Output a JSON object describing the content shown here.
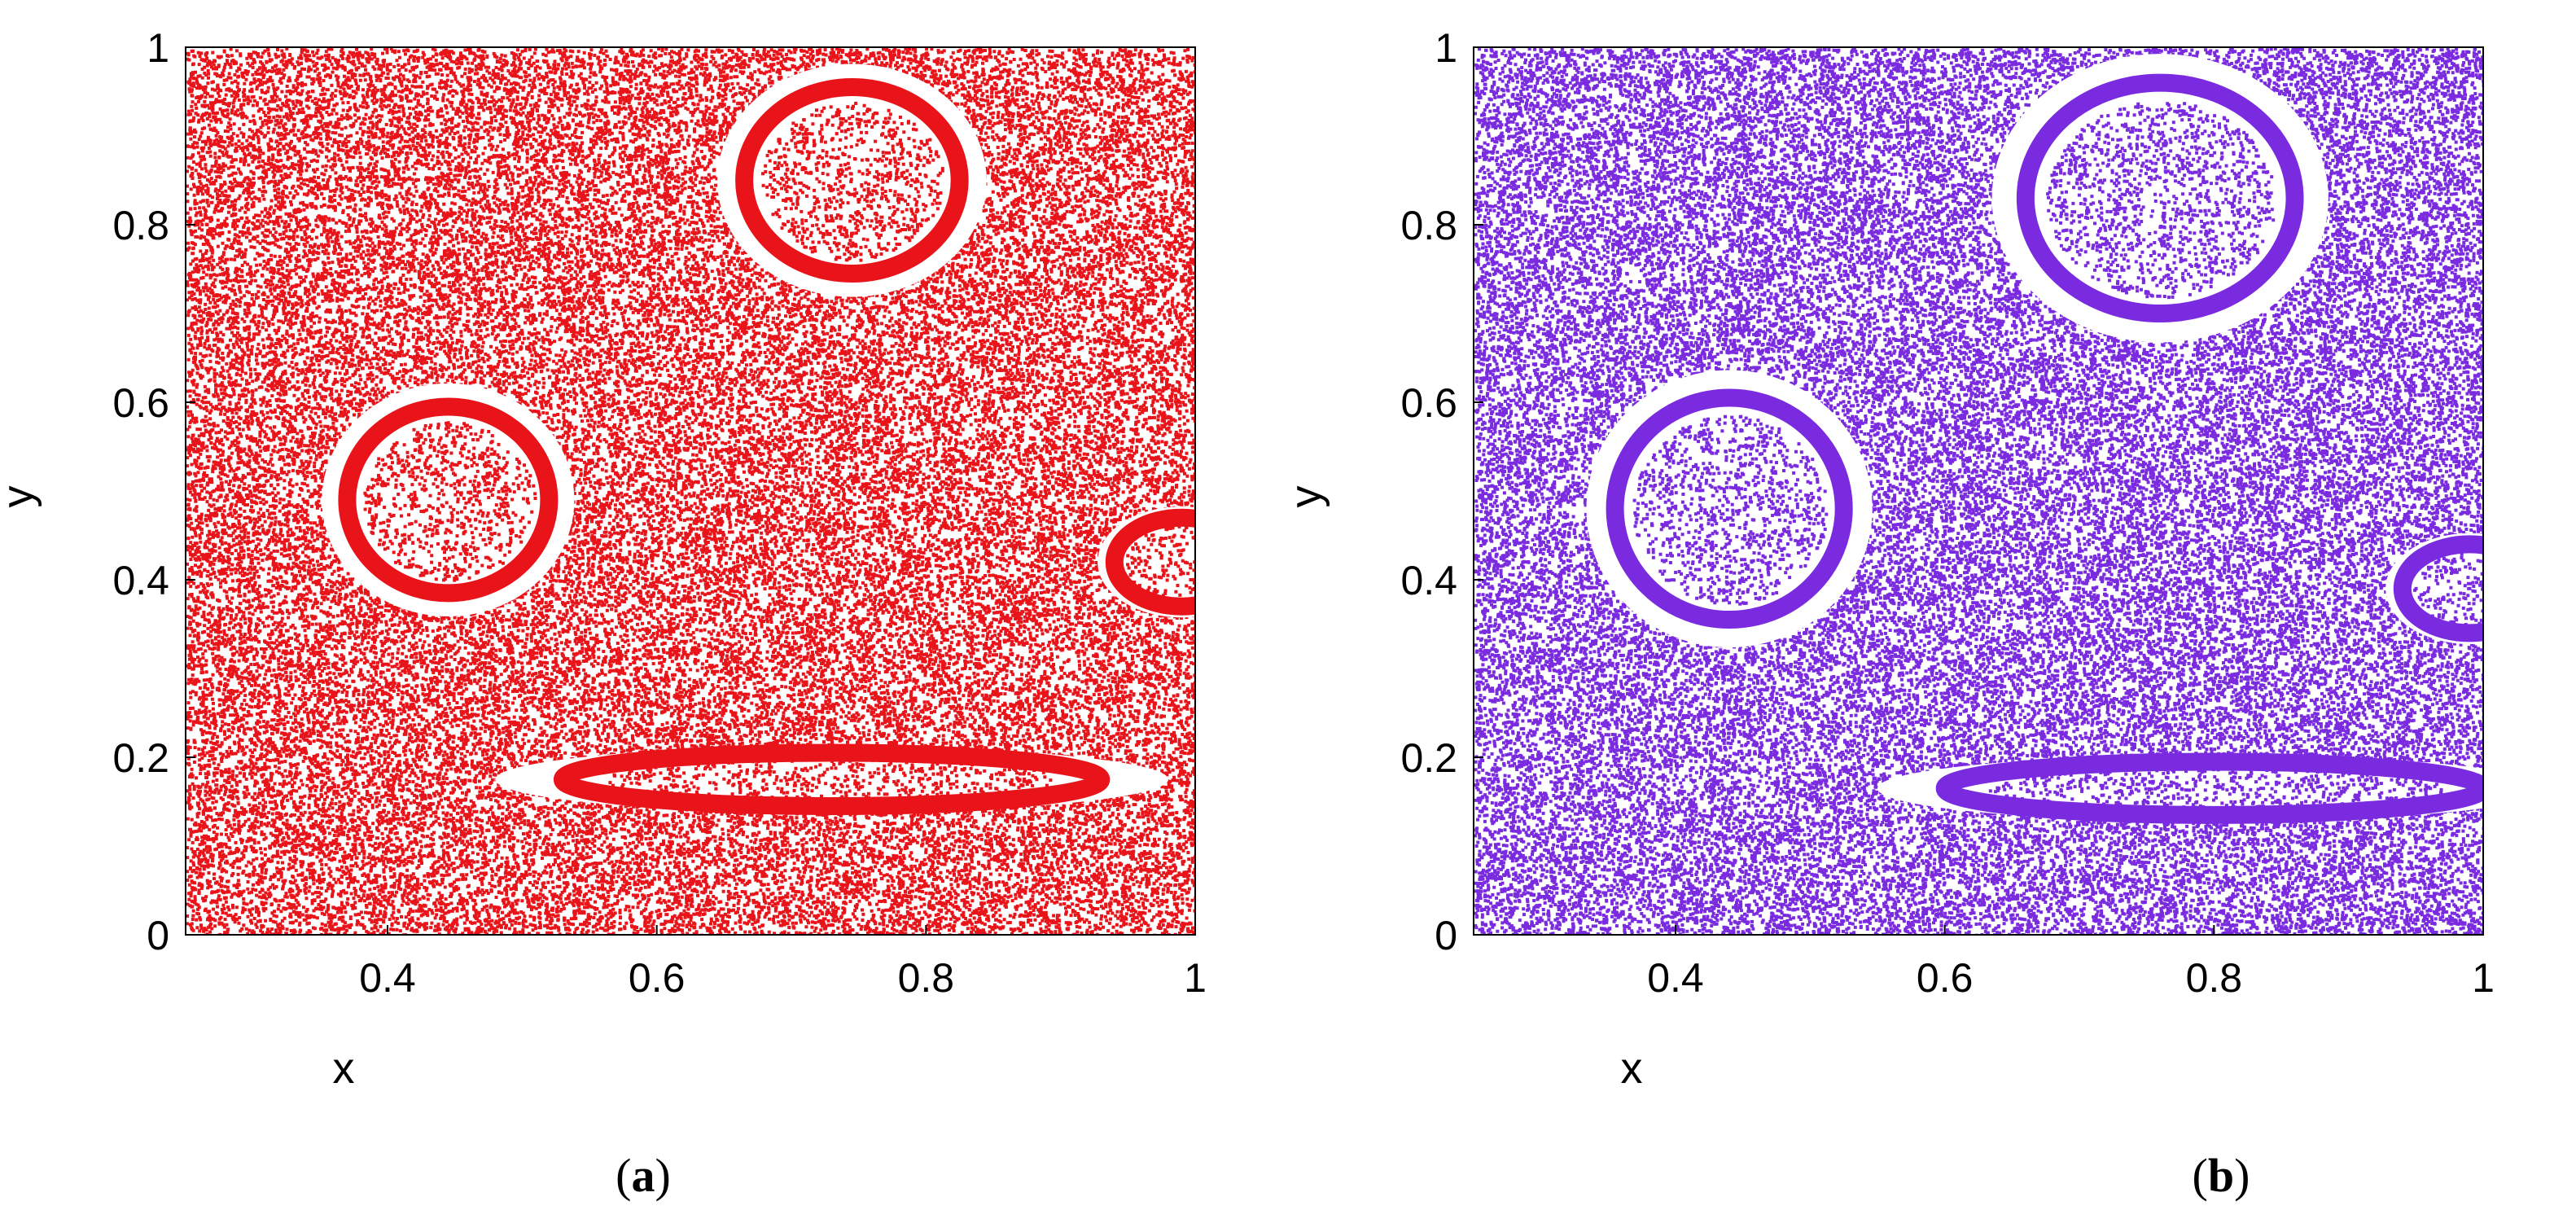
{
  "chart_data": [
    {
      "type": "scatter",
      "panel_label": "a",
      "xlabel": "x",
      "ylabel": "y",
      "xlim": [
        0.25,
        1.0
      ],
      "ylim": [
        0,
        1
      ],
      "xticks": [
        0.4,
        0.6,
        0.8,
        1.0
      ],
      "xtick_labels": [
        "0.4",
        "0.6",
        "0.8",
        "1"
      ],
      "yticks": [
        0,
        0.2,
        0.4,
        0.6,
        0.8,
        1.0
      ],
      "ytick_labels": [
        "0",
        "0.2",
        "0.4",
        "0.6",
        "0.8",
        "1"
      ],
      "color": "#e8141a",
      "islands": [
        {
          "cx": 0.445,
          "cy": 0.49,
          "rx": 0.075,
          "ry": 0.105
        },
        {
          "cx": 0.745,
          "cy": 0.85,
          "rx": 0.08,
          "ry": 0.105
        },
        {
          "cx": 0.73,
          "cy": 0.175,
          "rx": 0.2,
          "ry": 0.03
        },
        {
          "cx": 0.99,
          "cy": 0.42,
          "rx": 0.05,
          "ry": 0.05
        }
      ],
      "grid": false
    },
    {
      "type": "scatter",
      "panel_label": "b",
      "xlabel": "x",
      "ylabel": "y",
      "xlim": [
        0.25,
        1.0
      ],
      "ylim": [
        0,
        1
      ],
      "xticks": [
        0.4,
        0.6,
        0.8,
        1.0
      ],
      "xtick_labels": [
        "0.4",
        "0.6",
        "0.8",
        "1"
      ],
      "yticks": [
        0,
        0.2,
        0.4,
        0.6,
        0.8,
        1.0
      ],
      "ytick_labels": [
        "0",
        "0.2",
        "0.4",
        "0.6",
        "0.8",
        "1"
      ],
      "color": "#7a2be0",
      "islands": [
        {
          "cx": 0.44,
          "cy": 0.48,
          "rx": 0.085,
          "ry": 0.125
        },
        {
          "cx": 0.76,
          "cy": 0.83,
          "rx": 0.1,
          "ry": 0.13
        },
        {
          "cx": 0.8,
          "cy": 0.165,
          "rx": 0.2,
          "ry": 0.03
        },
        {
          "cx": 0.99,
          "cy": 0.39,
          "rx": 0.05,
          "ry": 0.05
        }
      ],
      "grid": false
    }
  ]
}
